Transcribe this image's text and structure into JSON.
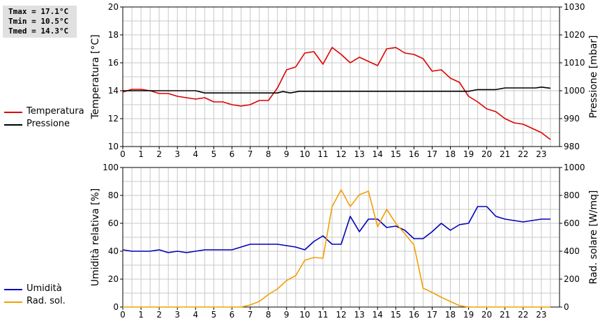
{
  "stats": {
    "tmax": "Tmax = 17.1°C",
    "tmin": "Tmin = 10.5°C",
    "tmed": "Tmed = 14.3°C"
  },
  "colors": {
    "temperature": "#dd0000",
    "pressure": "#000000",
    "humidity": "#0000bb",
    "solar": "#f2a000",
    "grid": "#c8c8c8"
  },
  "chart_data": [
    {
      "type": "line",
      "xlim": [
        0,
        24
      ],
      "x_ticks": [
        "0",
        "1",
        "2",
        "3",
        "4",
        "5",
        "6",
        "7",
        "8",
        "9",
        "10",
        "11",
        "12",
        "13",
        "14",
        "15",
        "16",
        "17",
        "18",
        "19",
        "20",
        "21",
        "22",
        "23"
      ],
      "y_left": {
        "label": "Temperatura [°C]",
        "lim": [
          10,
          20
        ],
        "ticks": [
          "10",
          "12",
          "14",
          "16",
          "18",
          "20"
        ]
      },
      "y_right": {
        "label": "Pressione [mbar]",
        "lim": [
          980,
          1030
        ],
        "ticks": [
          "980",
          "990",
          "1000",
          "1010",
          "1020",
          "1030"
        ]
      },
      "grid": true,
      "series": [
        {
          "name": "Temperatura",
          "axis": "left",
          "color_key": "temperature",
          "points": [
            [
              0,
              13.9
            ],
            [
              0.5,
              14.1
            ],
            [
              1,
              14.1
            ],
            [
              1.5,
              14.0
            ],
            [
              2,
              13.8
            ],
            [
              2.5,
              13.8
            ],
            [
              3,
              13.6
            ],
            [
              3.5,
              13.5
            ],
            [
              4,
              13.4
            ],
            [
              4.5,
              13.5
            ],
            [
              5,
              13.2
            ],
            [
              5.5,
              13.2
            ],
            [
              6,
              13.0
            ],
            [
              6.5,
              12.9
            ],
            [
              7,
              13.0
            ],
            [
              7.5,
              13.3
            ],
            [
              8,
              13.3
            ],
            [
              8.5,
              14.2
            ],
            [
              9,
              15.5
            ],
            [
              9.5,
              15.7
            ],
            [
              10,
              16.7
            ],
            [
              10.5,
              16.8
            ],
            [
              11,
              15.9
            ],
            [
              11.5,
              17.1
            ],
            [
              12,
              16.6
            ],
            [
              12.5,
              16.0
            ],
            [
              13,
              16.4
            ],
            [
              13.5,
              16.1
            ],
            [
              14,
              15.8
            ],
            [
              14.5,
              17.0
            ],
            [
              15,
              17.1
            ],
            [
              15.5,
              16.7
            ],
            [
              16,
              16.6
            ],
            [
              16.5,
              16.3
            ],
            [
              17,
              15.4
            ],
            [
              17.5,
              15.5
            ],
            [
              18,
              14.9
            ],
            [
              18.5,
              14.6
            ],
            [
              19,
              13.6
            ],
            [
              19.5,
              13.2
            ],
            [
              20,
              12.7
            ],
            [
              20.5,
              12.5
            ],
            [
              21,
              12.0
            ],
            [
              21.5,
              11.7
            ],
            [
              22,
              11.6
            ],
            [
              22.5,
              11.3
            ],
            [
              23,
              11.0
            ],
            [
              23.5,
              10.5
            ]
          ]
        },
        {
          "name": "Pressione",
          "axis": "right",
          "color_key": "pressure",
          "points": [
            [
              0,
              1000
            ],
            [
              4,
              1000
            ],
            [
              4.5,
              999.2
            ],
            [
              8.5,
              999.2
            ],
            [
              8.8,
              999.7
            ],
            [
              9.2,
              999.2
            ],
            [
              9.7,
              999.8
            ],
            [
              19,
              999.8
            ],
            [
              19.5,
              1000.4
            ],
            [
              20.5,
              1000.4
            ],
            [
              21,
              1001.0
            ],
            [
              22.7,
              1001.0
            ],
            [
              23,
              1001.3
            ],
            [
              23.5,
              1000.9
            ]
          ]
        }
      ]
    },
    {
      "type": "line",
      "xlim": [
        0,
        24
      ],
      "x_ticks": [
        "0",
        "1",
        "2",
        "3",
        "4",
        "5",
        "6",
        "7",
        "8",
        "9",
        "10",
        "11",
        "12",
        "13",
        "14",
        "15",
        "16",
        "17",
        "18",
        "19",
        "20",
        "21",
        "22",
        "23"
      ],
      "y_left": {
        "label": "Umidità relativa [%]",
        "lim": [
          0,
          100
        ],
        "ticks": [
          "0",
          "20",
          "40",
          "60",
          "80",
          "100"
        ]
      },
      "y_right": {
        "label": "Rad. solare [W/mq]",
        "lim": [
          0,
          1000
        ],
        "ticks": [
          "0",
          "200",
          "400",
          "600",
          "800",
          "1000"
        ]
      },
      "grid": true,
      "series": [
        {
          "name": "Umidità",
          "axis": "left",
          "color_key": "humidity",
          "points": [
            [
              0,
              41
            ],
            [
              0.5,
              40
            ],
            [
              1.5,
              40
            ],
            [
              2,
              41
            ],
            [
              2.5,
              39
            ],
            [
              3,
              40
            ],
            [
              3.5,
              39
            ],
            [
              4,
              40
            ],
            [
              4.5,
              41
            ],
            [
              6,
              41
            ],
            [
              6.5,
              43
            ],
            [
              7,
              45
            ],
            [
              8.5,
              45
            ],
            [
              9.5,
              43
            ],
            [
              10,
              41
            ],
            [
              10.5,
              47
            ],
            [
              11,
              51
            ],
            [
              11.5,
              45
            ],
            [
              12,
              45
            ],
            [
              12.5,
              65
            ],
            [
              13,
              54
            ],
            [
              13.5,
              63
            ],
            [
              14,
              63
            ],
            [
              14.5,
              57
            ],
            [
              15,
              58
            ],
            [
              15.5,
              55
            ],
            [
              16,
              49
            ],
            [
              16.5,
              49
            ],
            [
              17,
              54
            ],
            [
              17.5,
              60
            ],
            [
              18,
              55
            ],
            [
              18.5,
              59
            ],
            [
              19,
              60
            ],
            [
              19.5,
              72
            ],
            [
              20,
              72
            ],
            [
              20.5,
              65
            ],
            [
              21,
              63
            ],
            [
              22,
              61
            ],
            [
              22.5,
              62
            ],
            [
              23,
              63
            ],
            [
              23.5,
              63
            ]
          ]
        },
        {
          "name": "Rad. sol.",
          "axis": "right",
          "color_key": "solar",
          "points": [
            [
              0,
              0
            ],
            [
              6.5,
              0
            ],
            [
              7,
              15
            ],
            [
              7.5,
              40
            ],
            [
              8,
              90
            ],
            [
              8.5,
              130
            ],
            [
              9,
              190
            ],
            [
              9.5,
              225
            ],
            [
              10,
              335
            ],
            [
              10.5,
              355
            ],
            [
              11,
              350
            ],
            [
              11.5,
              720
            ],
            [
              12,
              840
            ],
            [
              12.5,
              720
            ],
            [
              13,
              805
            ],
            [
              13.5,
              830
            ],
            [
              14,
              575
            ],
            [
              14.5,
              700
            ],
            [
              15,
              600
            ],
            [
              15.5,
              525
            ],
            [
              16,
              445
            ],
            [
              16.5,
              135
            ],
            [
              17,
              105
            ],
            [
              17.5,
              70
            ],
            [
              18,
              40
            ],
            [
              18.5,
              10
            ],
            [
              19,
              0
            ],
            [
              23.5,
              0
            ]
          ]
        }
      ]
    }
  ]
}
